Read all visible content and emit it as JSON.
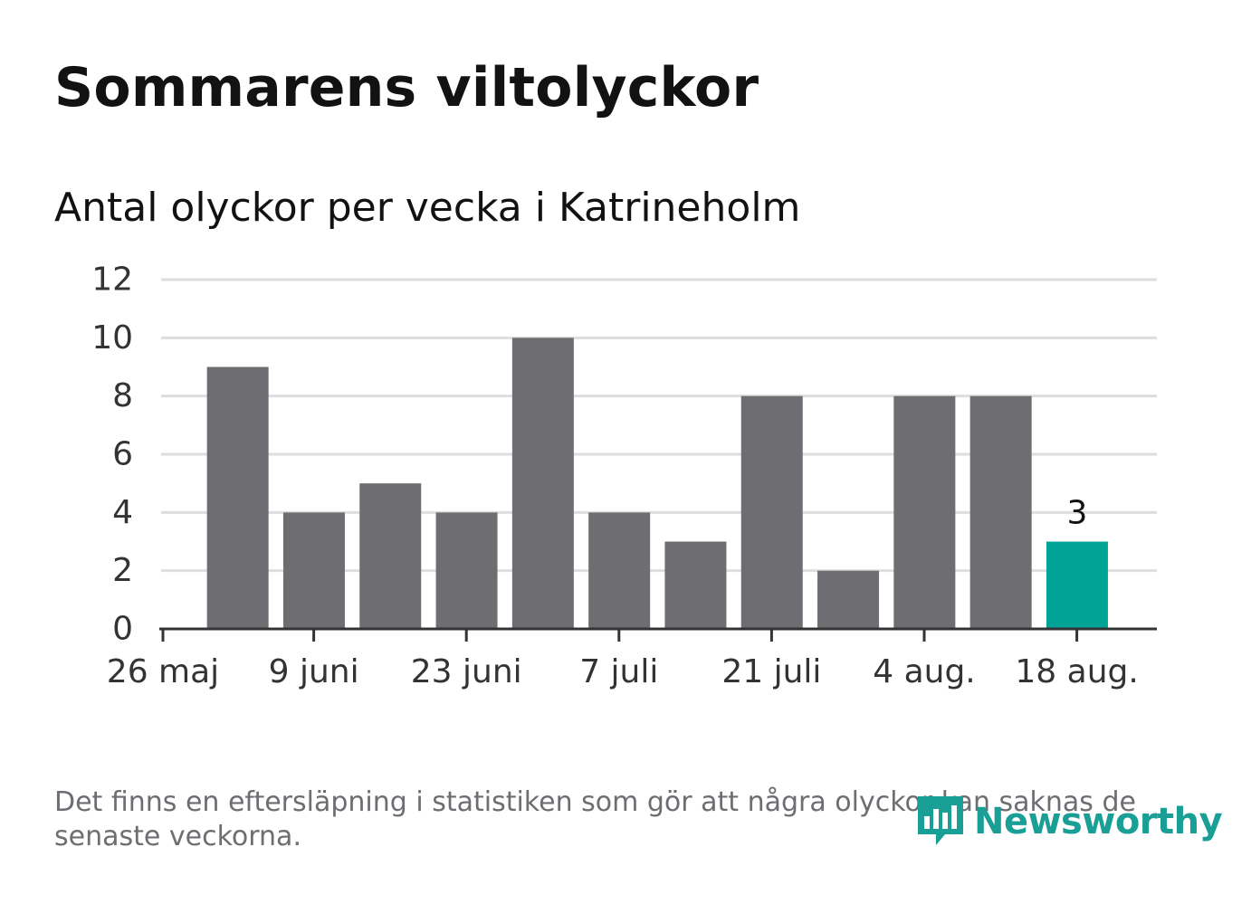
{
  "header": {
    "title": "Sommarens viltolyckor",
    "subtitle": "Antal olyckor per vecka i Katrineholm"
  },
  "footnote": "Det finns en eftersläpning i statistiken som gör att några olyckor kan saknas de senaste veckorna.",
  "logo": {
    "text": "Newsworthy",
    "icon": "newsworthy-bar-chart-icon",
    "color": "#1a9f96"
  },
  "colors": {
    "bar": "#6e6d72",
    "highlight": "#00a396",
    "grid": "#dedede",
    "axis": "#333333"
  },
  "chart_data": {
    "type": "bar",
    "title": "Sommarens viltolyckor",
    "subtitle": "Antal olyckor per vecka i Katrineholm",
    "xlabel": "",
    "ylabel": "",
    "ylim": [
      0,
      12
    ],
    "yticks": [
      0,
      2,
      4,
      6,
      8,
      10,
      12
    ],
    "grid": true,
    "legend": "none",
    "x_tick_labels": [
      "26 maj",
      "9 juni",
      "23 juni",
      "7 juli",
      "21 juli",
      "4 aug.",
      "18 aug."
    ],
    "values": [
      9,
      4,
      5,
      4,
      10,
      4,
      3,
      8,
      2,
      8,
      8,
      3
    ],
    "highlight_index": 11,
    "highlight_label": "3"
  }
}
